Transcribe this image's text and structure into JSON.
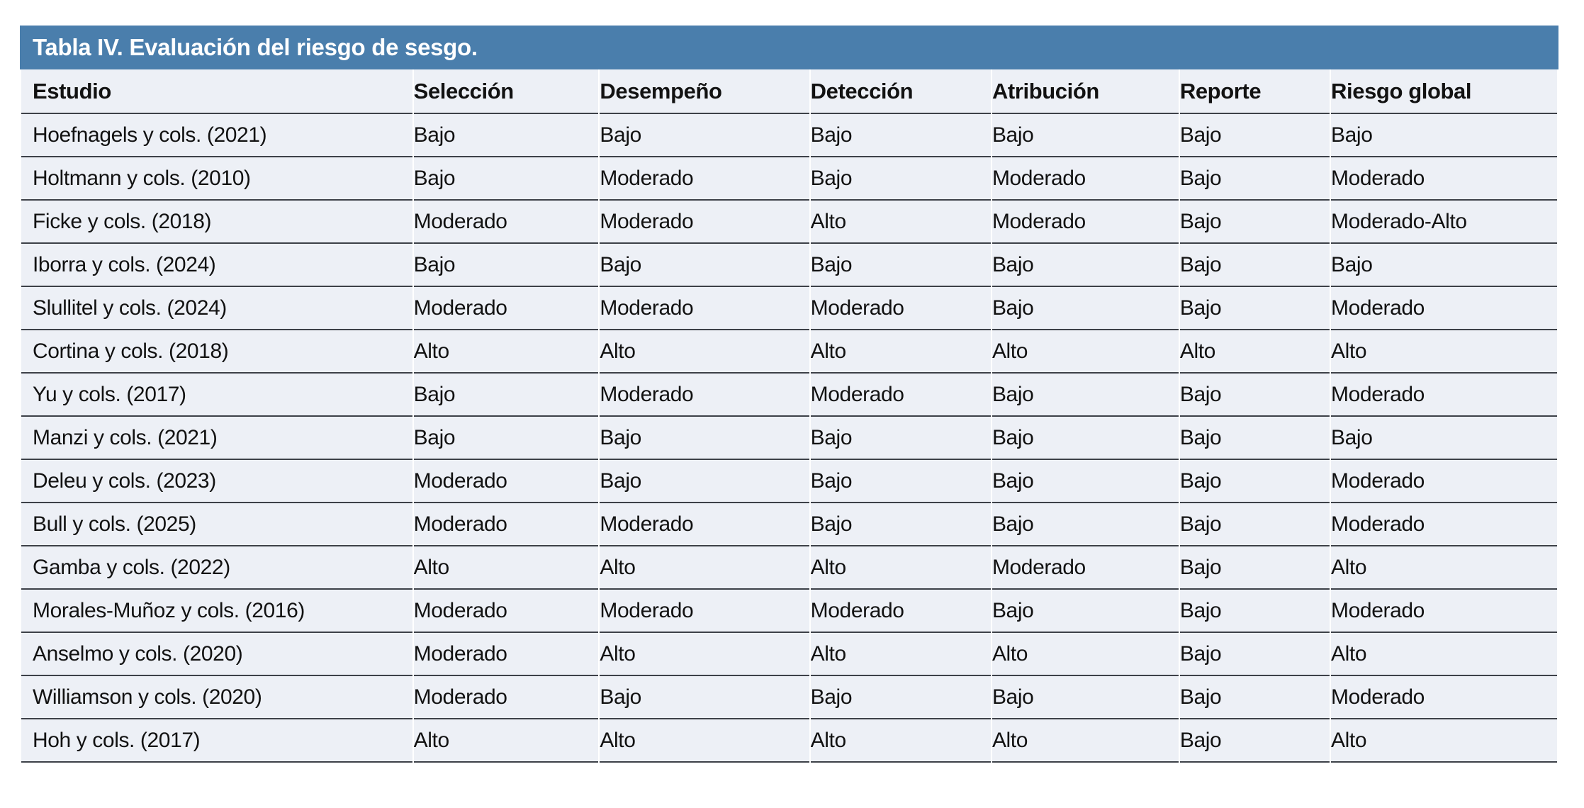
{
  "title": "Tabla IV. Evaluación del riesgo de sesgo.",
  "colors": {
    "banner_blue": "#4a7eac",
    "row_background": "#edf0f6",
    "separator_line": "#3d4148",
    "title_text": "#ffffff",
    "body_text": "#121212"
  },
  "table": {
    "columns": [
      "Estudio",
      "Selección",
      "Desempeño",
      "Detección",
      "Atribución",
      "Reporte",
      "Riesgo global"
    ],
    "rows": [
      [
        "Hoefnagels y cols. (2021)",
        "Bajo",
        "Bajo",
        "Bajo",
        "Bajo",
        "Bajo",
        "Bajo"
      ],
      [
        "Holtmann y cols. (2010)",
        "Bajo",
        "Moderado",
        "Bajo",
        "Moderado",
        "Bajo",
        "Moderado"
      ],
      [
        "Ficke y cols. (2018)",
        "Moderado",
        "Moderado",
        "Alto",
        "Moderado",
        "Bajo",
        "Moderado-Alto"
      ],
      [
        "Iborra y cols. (2024)",
        "Bajo",
        "Bajo",
        "Bajo",
        "Bajo",
        "Bajo",
        "Bajo"
      ],
      [
        "Slullitel y cols. (2024)",
        "Moderado",
        "Moderado",
        "Moderado",
        "Bajo",
        "Bajo",
        "Moderado"
      ],
      [
        "Cortina y cols. (2018)",
        "Alto",
        "Alto",
        "Alto",
        "Alto",
        "Alto",
        "Alto"
      ],
      [
        "Yu y cols. (2017)",
        "Bajo",
        "Moderado",
        "Moderado",
        "Bajo",
        "Bajo",
        "Moderado"
      ],
      [
        "Manzi y cols. (2021)",
        "Bajo",
        "Bajo",
        "Bajo",
        "Bajo",
        "Bajo",
        "Bajo"
      ],
      [
        "Deleu y cols. (2023)",
        "Moderado",
        "Bajo",
        "Bajo",
        "Bajo",
        "Bajo",
        "Moderado"
      ],
      [
        "Bull y cols. (2025)",
        "Moderado",
        "Moderado",
        "Bajo",
        "Bajo",
        "Bajo",
        "Moderado"
      ],
      [
        "Gamba y cols. (2022)",
        "Alto",
        "Alto",
        "Alto",
        "Moderado",
        "Bajo",
        "Alto"
      ],
      [
        "Morales-Muñoz y cols. (2016)",
        "Moderado",
        "Moderado",
        "Moderado",
        "Bajo",
        "Bajo",
        "Moderado"
      ],
      [
        "Anselmo y cols. (2020)",
        "Moderado",
        "Alto",
        "Alto",
        "Alto",
        "Bajo",
        "Alto"
      ],
      [
        "Williamson y cols. (2020)",
        "Moderado",
        "Bajo",
        "Bajo",
        "Bajo",
        "Bajo",
        "Moderado"
      ],
      [
        "Hoh y cols. (2017)",
        "Alto",
        "Alto",
        "Alto",
        "Alto",
        "Bajo",
        "Alto"
      ]
    ]
  }
}
